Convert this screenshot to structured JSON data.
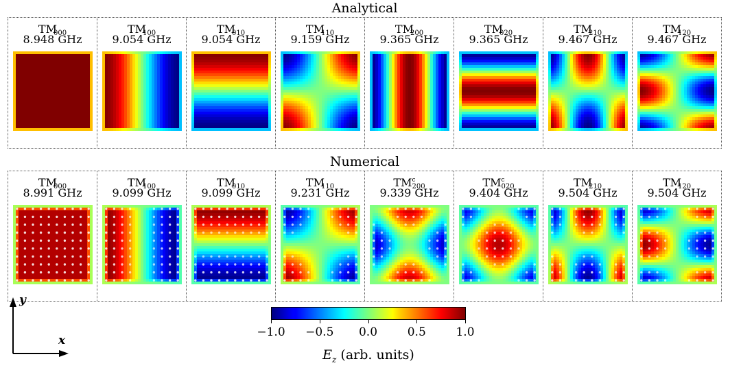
{
  "rows": [
    {
      "title": "Analytical",
      "panels": [
        {
          "mode": "TM",
          "sub": "000",
          "sup": "",
          "freq": "8.948 GHz",
          "field": "000"
        },
        {
          "mode": "TM",
          "sub": "100",
          "sup": "",
          "freq": "9.054 GHz",
          "field": "100"
        },
        {
          "mode": "TM",
          "sub": "010",
          "sup": "",
          "freq": "9.054 GHz",
          "field": "010"
        },
        {
          "mode": "TM",
          "sub": "110",
          "sup": "",
          "freq": "9.159 GHz",
          "field": "110"
        },
        {
          "mode": "TM",
          "sub": "200",
          "sup": "",
          "freq": "9.365 GHz",
          "field": "200"
        },
        {
          "mode": "TM",
          "sub": "020",
          "sup": "",
          "freq": "9.365 GHz",
          "field": "020"
        },
        {
          "mode": "TM",
          "sub": "210",
          "sup": "",
          "freq": "9.467 GHz",
          "field": "210"
        },
        {
          "mode": "TM",
          "sub": "120",
          "sup": "",
          "freq": "9.467 GHz",
          "field": "120"
        }
      ]
    },
    {
      "title": "Numerical",
      "panels": [
        {
          "mode": "TM",
          "sub": "000",
          "sup": "",
          "freq": "8.991 GHz",
          "field": "000"
        },
        {
          "mode": "TM",
          "sub": "100",
          "sup": "",
          "freq": "9.099 GHz",
          "field": "100"
        },
        {
          "mode": "TM",
          "sub": "010",
          "sup": "",
          "freq": "9.099 GHz",
          "field": "010"
        },
        {
          "mode": "TM",
          "sub": "110",
          "sup": "",
          "freq": "9.231 GHz",
          "field": "110"
        },
        {
          "mode": "TM",
          "sub": "200",
          "sup": "c",
          "freq": "9.339 GHz",
          "field": "200c"
        },
        {
          "mode": "TM",
          "sub": "020",
          "sup": "c",
          "freq": "9.404 GHz",
          "field": "020c"
        },
        {
          "mode": "TM",
          "sub": "210",
          "sup": "",
          "freq": "9.504 GHz",
          "field": "210"
        },
        {
          "mode": "TM",
          "sub": "120",
          "sup": "",
          "freq": "9.504 GHz",
          "field": "120"
        }
      ]
    }
  ],
  "colorbar": {
    "label_var": "E",
    "label_sub": "z",
    "label_units": " (arb. units)",
    "min": -1.0,
    "max": 1.0,
    "ticks": [
      "−1.0",
      "−0.5",
      "0.0",
      "0.5",
      "1.0"
    ],
    "colormap": "jet"
  },
  "axes": {
    "x": "x",
    "y": "y"
  }
}
